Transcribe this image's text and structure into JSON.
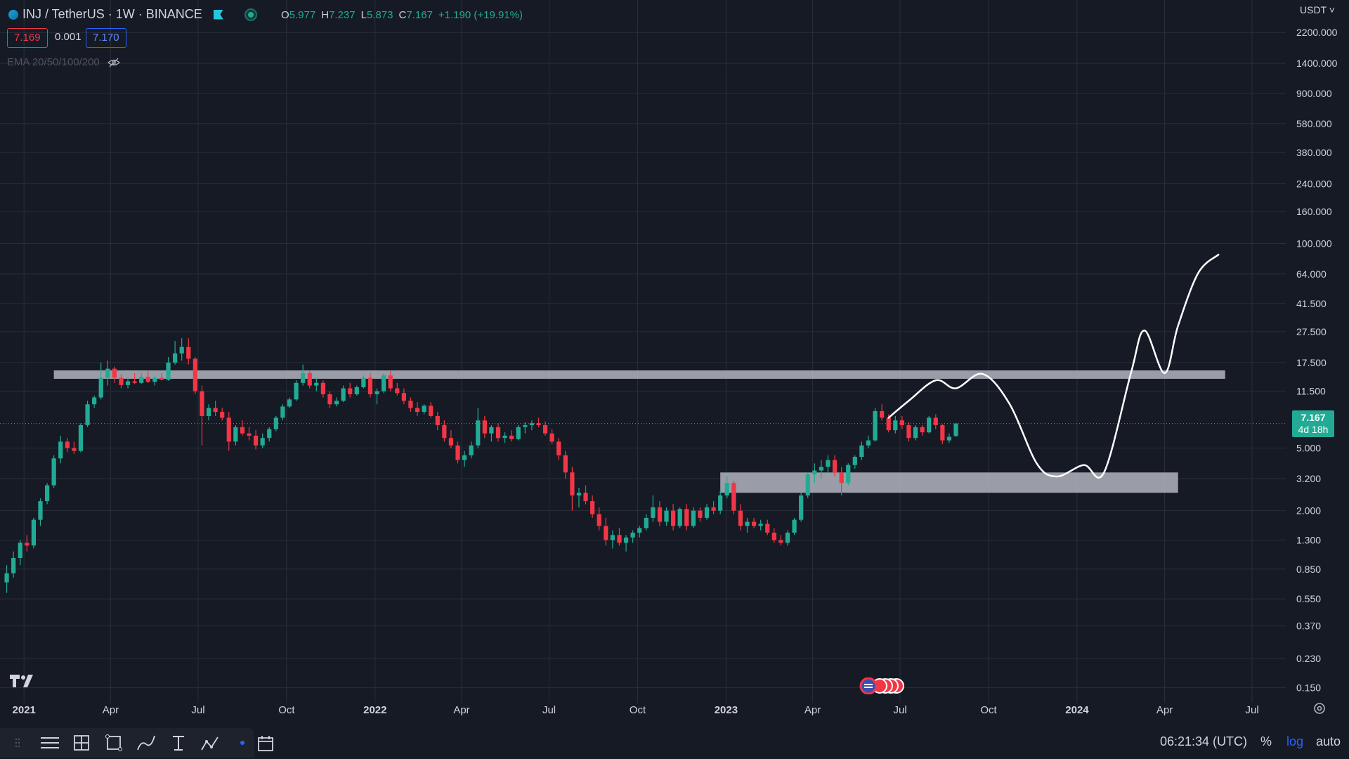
{
  "header": {
    "symbol": "INJ / TetherUS · 1W · BINANCE",
    "ohlc": {
      "open_label": "O",
      "open": "5.977",
      "high_label": "H",
      "high": "7.237",
      "low_label": "L",
      "low": "5.873",
      "close_label": "C",
      "close": "7.167",
      "change": "+1.190 (+19.91%)"
    },
    "bid": "7.169",
    "spread": "0.001",
    "ask": "7.170",
    "indicator": "EMA 20/50/100/200"
  },
  "price_axis": {
    "currency": "USDT",
    "ticks": [
      "2200.000",
      "1400.000",
      "900.000",
      "580.000",
      "380.000",
      "240.000",
      "160.000",
      "100.000",
      "64.000",
      "41.500",
      "27.500",
      "17.500",
      "11.500",
      "5.000",
      "3.200",
      "2.000",
      "1.300",
      "0.850",
      "0.550",
      "0.370",
      "0.230",
      "0.150"
    ],
    "last_price": "7.167",
    "countdown": "4d 18h"
  },
  "time_axis": {
    "ticks": [
      "2021",
      "Apr",
      "Jul",
      "Oct",
      "2022",
      "Apr",
      "Jul",
      "Oct",
      "2023",
      "Apr",
      "Jul",
      "Oct",
      "2024",
      "Apr",
      "Jul"
    ]
  },
  "footer": {
    "clock": "06:21:34 (UTC)",
    "percent": "%",
    "log": "log",
    "auto": "auto"
  },
  "colors": {
    "up": "#22ab94",
    "down": "#f23645",
    "zone": "#b2b5be",
    "background": "#161a25"
  },
  "chart_data": {
    "type": "candlestick",
    "scale": "log",
    "ylim": [
      0.12,
      2600
    ],
    "xlim": [
      "2020-12-07",
      "2024-08-05"
    ],
    "grid": true,
    "start_week": "2020-12-14",
    "interval": "1W",
    "ohlc": [
      [
        0.7,
        0.9,
        0.6,
        0.8
      ],
      [
        0.8,
        1.1,
        0.75,
        1.0
      ],
      [
        1.0,
        1.3,
        0.9,
        1.25
      ],
      [
        1.25,
        1.4,
        1.1,
        1.2
      ],
      [
        1.2,
        1.8,
        1.15,
        1.75
      ],
      [
        1.75,
        2.4,
        1.6,
        2.3
      ],
      [
        2.3,
        3.0,
        2.2,
        2.9
      ],
      [
        2.9,
        4.5,
        2.8,
        4.3
      ],
      [
        4.3,
        6.0,
        4.0,
        5.5
      ],
      [
        5.5,
        5.8,
        4.7,
        5.0
      ],
      [
        5.0,
        5.5,
        4.6,
        4.8
      ],
      [
        4.8,
        7.2,
        4.7,
        7.0
      ],
      [
        7.0,
        10.0,
        6.8,
        9.5
      ],
      [
        9.5,
        10.8,
        9.0,
        10.5
      ],
      [
        10.5,
        17.5,
        10.2,
        14.0
      ],
      [
        14.0,
        18.0,
        12.5,
        16.0
      ],
      [
        16.0,
        16.5,
        13.0,
        14.0
      ],
      [
        14.0,
        14.8,
        12.0,
        12.6
      ],
      [
        12.6,
        14.0,
        12.0,
        13.3
      ],
      [
        13.3,
        15.0,
        12.8,
        13.0
      ],
      [
        13.0,
        15.0,
        12.8,
        14.2
      ],
      [
        14.2,
        15.5,
        13.0,
        13.2
      ],
      [
        13.2,
        14.5,
        12.5,
        14.0
      ],
      [
        14.0,
        15.0,
        13.5,
        13.6
      ],
      [
        13.6,
        19.0,
        13.4,
        17.5
      ],
      [
        17.5,
        24.0,
        17.0,
        20.0
      ],
      [
        20.0,
        25.0,
        18.0,
        22.0
      ],
      [
        22.0,
        25.0,
        17.0,
        18.5
      ],
      [
        18.5,
        19.0,
        11.0,
        11.5
      ],
      [
        11.5,
        12.5,
        5.2,
        8.0
      ],
      [
        8.0,
        9.5,
        7.5,
        9.0
      ],
      [
        9.0,
        10.0,
        8.0,
        8.5
      ],
      [
        8.5,
        9.0,
        7.5,
        7.8
      ],
      [
        7.8,
        8.5,
        4.8,
        5.5
      ],
      [
        5.5,
        7.0,
        5.2,
        6.8
      ],
      [
        6.8,
        7.5,
        6.0,
        6.2
      ],
      [
        6.2,
        6.8,
        5.6,
        6.0
      ],
      [
        6.0,
        6.5,
        4.9,
        5.2
      ],
      [
        5.2,
        6.2,
        5.0,
        5.8
      ],
      [
        5.8,
        6.8,
        5.5,
        6.6
      ],
      [
        6.6,
        8.0,
        6.4,
        7.8
      ],
      [
        7.8,
        9.5,
        7.5,
        9.2
      ],
      [
        9.2,
        10.5,
        9.0,
        10.2
      ],
      [
        10.2,
        13.5,
        10.0,
        13.0
      ],
      [
        13.0,
        17.0,
        12.5,
        15.0
      ],
      [
        15.0,
        15.5,
        12.0,
        12.5
      ],
      [
        12.5,
        14.0,
        11.5,
        13.0
      ],
      [
        13.0,
        13.5,
        10.5,
        11.0
      ],
      [
        11.0,
        11.5,
        9.0,
        9.5
      ],
      [
        9.5,
        10.5,
        9.2,
        10.0
      ],
      [
        10.0,
        12.5,
        9.8,
        12.0
      ],
      [
        12.0,
        13.0,
        10.5,
        11.0
      ],
      [
        11.0,
        12.5,
        10.8,
        12.2
      ],
      [
        12.2,
        14.5,
        12.0,
        14.0
      ],
      [
        14.0,
        15.0,
        10.5,
        11.0
      ],
      [
        11.0,
        12.0,
        9.5,
        11.5
      ],
      [
        11.5,
        15.0,
        11.2,
        14.5
      ],
      [
        14.5,
        15.5,
        11.5,
        12.0
      ],
      [
        12.0,
        13.0,
        10.8,
        11.2
      ],
      [
        11.2,
        12.0,
        9.5,
        10.0
      ],
      [
        10.0,
        10.5,
        8.5,
        9.0
      ],
      [
        9.0,
        9.8,
        8.0,
        8.5
      ],
      [
        8.5,
        9.5,
        8.2,
        9.3
      ],
      [
        9.3,
        9.8,
        7.8,
        8.0
      ],
      [
        8.0,
        8.5,
        6.5,
        7.0
      ],
      [
        7.0,
        7.5,
        5.5,
        5.8
      ],
      [
        5.8,
        6.5,
        5.0,
        5.2
      ],
      [
        5.2,
        5.5,
        4.0,
        4.2
      ],
      [
        4.2,
        4.8,
        3.8,
        4.5
      ],
      [
        4.5,
        5.5,
        4.3,
        5.2
      ],
      [
        5.2,
        9.0,
        5.0,
        7.5
      ],
      [
        7.5,
        8.0,
        5.8,
        6.2
      ],
      [
        6.2,
        7.0,
        5.5,
        6.8
      ],
      [
        6.8,
        7.2,
        5.5,
        5.8
      ],
      [
        5.8,
        6.3,
        5.4,
        6.0
      ],
      [
        6.0,
        6.5,
        5.5,
        5.7
      ],
      [
        5.7,
        7.0,
        5.6,
        6.8
      ],
      [
        6.8,
        7.3,
        6.2,
        7.0
      ],
      [
        7.0,
        7.5,
        6.5,
        7.2
      ],
      [
        7.2,
        7.8,
        6.8,
        7.0
      ],
      [
        7.0,
        7.4,
        6.0,
        6.2
      ],
      [
        6.2,
        6.6,
        5.3,
        5.5
      ],
      [
        5.5,
        5.8,
        4.2,
        4.5
      ],
      [
        4.5,
        4.8,
        3.2,
        3.5
      ],
      [
        3.5,
        3.8,
        2.0,
        2.5
      ],
      [
        2.5,
        2.8,
        2.1,
        2.6
      ],
      [
        2.6,
        2.9,
        2.2,
        2.3
      ],
      [
        2.3,
        2.5,
        1.8,
        1.9
      ],
      [
        1.9,
        2.1,
        1.5,
        1.6
      ],
      [
        1.6,
        1.8,
        1.2,
        1.3
      ],
      [
        1.3,
        1.5,
        1.15,
        1.4
      ],
      [
        1.4,
        1.55,
        1.2,
        1.25
      ],
      [
        1.25,
        1.4,
        1.1,
        1.35
      ],
      [
        1.35,
        1.5,
        1.25,
        1.45
      ],
      [
        1.45,
        1.6,
        1.35,
        1.55
      ],
      [
        1.55,
        1.9,
        1.5,
        1.8
      ],
      [
        1.8,
        2.5,
        1.7,
        2.1
      ],
      [
        2.1,
        2.3,
        1.6,
        1.7
      ],
      [
        1.7,
        2.1,
        1.6,
        2.0
      ],
      [
        2.0,
        2.2,
        1.5,
        1.6
      ],
      [
        1.6,
        2.1,
        1.55,
        2.05
      ],
      [
        2.05,
        2.2,
        1.5,
        1.6
      ],
      [
        1.6,
        2.1,
        1.55,
        2.0
      ],
      [
        2.0,
        2.1,
        1.7,
        1.8
      ],
      [
        1.8,
        2.2,
        1.75,
        2.1
      ],
      [
        2.1,
        2.3,
        1.9,
        2.0
      ],
      [
        2.0,
        2.7,
        1.9,
        2.5
      ],
      [
        2.5,
        3.3,
        2.4,
        3.0
      ],
      [
        3.0,
        3.1,
        1.9,
        2.0
      ],
      [
        2.0,
        2.2,
        1.5,
        1.6
      ],
      [
        1.6,
        1.8,
        1.45,
        1.7
      ],
      [
        1.7,
        1.8,
        1.55,
        1.6
      ],
      [
        1.6,
        1.75,
        1.5,
        1.65
      ],
      [
        1.65,
        1.75,
        1.4,
        1.45
      ],
      [
        1.45,
        1.55,
        1.25,
        1.3
      ],
      [
        1.3,
        1.4,
        1.2,
        1.25
      ],
      [
        1.25,
        1.5,
        1.2,
        1.45
      ],
      [
        1.45,
        1.8,
        1.4,
        1.75
      ],
      [
        1.75,
        2.6,
        1.7,
        2.5
      ],
      [
        2.5,
        3.5,
        2.4,
        3.4
      ],
      [
        3.4,
        4.0,
        3.0,
        3.6
      ],
      [
        3.6,
        4.2,
        3.2,
        3.8
      ],
      [
        3.8,
        4.5,
        3.5,
        4.2
      ],
      [
        4.2,
        4.5,
        3.3,
        3.5
      ],
      [
        3.5,
        3.8,
        2.5,
        3.0
      ],
      [
        3.0,
        4.0,
        2.9,
        3.9
      ],
      [
        3.9,
        4.5,
        3.7,
        4.4
      ],
      [
        4.4,
        5.5,
        4.2,
        5.2
      ],
      [
        5.2,
        6.0,
        5.0,
        5.6
      ],
      [
        5.6,
        9.0,
        5.5,
        8.6
      ],
      [
        8.6,
        9.5,
        7.5,
        7.8
      ],
      [
        7.8,
        8.2,
        6.3,
        6.5
      ],
      [
        6.5,
        8.0,
        6.2,
        7.5
      ],
      [
        7.5,
        8.0,
        6.6,
        7.0
      ],
      [
        7.0,
        7.3,
        5.5,
        5.8
      ],
      [
        5.8,
        7.0,
        5.6,
        6.8
      ],
      [
        6.8,
        7.0,
        6.0,
        6.3
      ],
      [
        6.3,
        8.0,
        6.2,
        7.8
      ],
      [
        7.8,
        8.2,
        6.6,
        7.0
      ],
      [
        7.0,
        7.1,
        5.3,
        5.6
      ],
      [
        5.6,
        6.2,
        5.4,
        5.9
      ],
      [
        5.977,
        7.237,
        5.873,
        7.167
      ]
    ],
    "zones": [
      {
        "from": "2021-02-01",
        "to": "2024-06-03",
        "low": 13.8,
        "high": 15.6
      },
      {
        "from": "2022-12-26",
        "to": "2024-04-15",
        "low": 2.6,
        "high": 3.5
      }
    ],
    "projection": [
      [
        "2023-06-19",
        7.8
      ],
      [
        "2023-07-10",
        10.0
      ],
      [
        "2023-08-07",
        13.5
      ],
      [
        "2023-08-28",
        12.0
      ],
      [
        "2023-09-25",
        14.8
      ],
      [
        "2023-10-23",
        9.5
      ],
      [
        "2023-11-20",
        4.0
      ],
      [
        "2023-12-11",
        3.3
      ],
      [
        "2024-01-08",
        3.9
      ],
      [
        "2024-01-29",
        3.5
      ],
      [
        "2024-02-26",
        15.0
      ],
      [
        "2024-03-11",
        28.0
      ],
      [
        "2024-04-01",
        15.0
      ],
      [
        "2024-04-15",
        30.0
      ],
      [
        "2024-05-06",
        65.0
      ],
      [
        "2024-05-27",
        85.0
      ]
    ]
  }
}
